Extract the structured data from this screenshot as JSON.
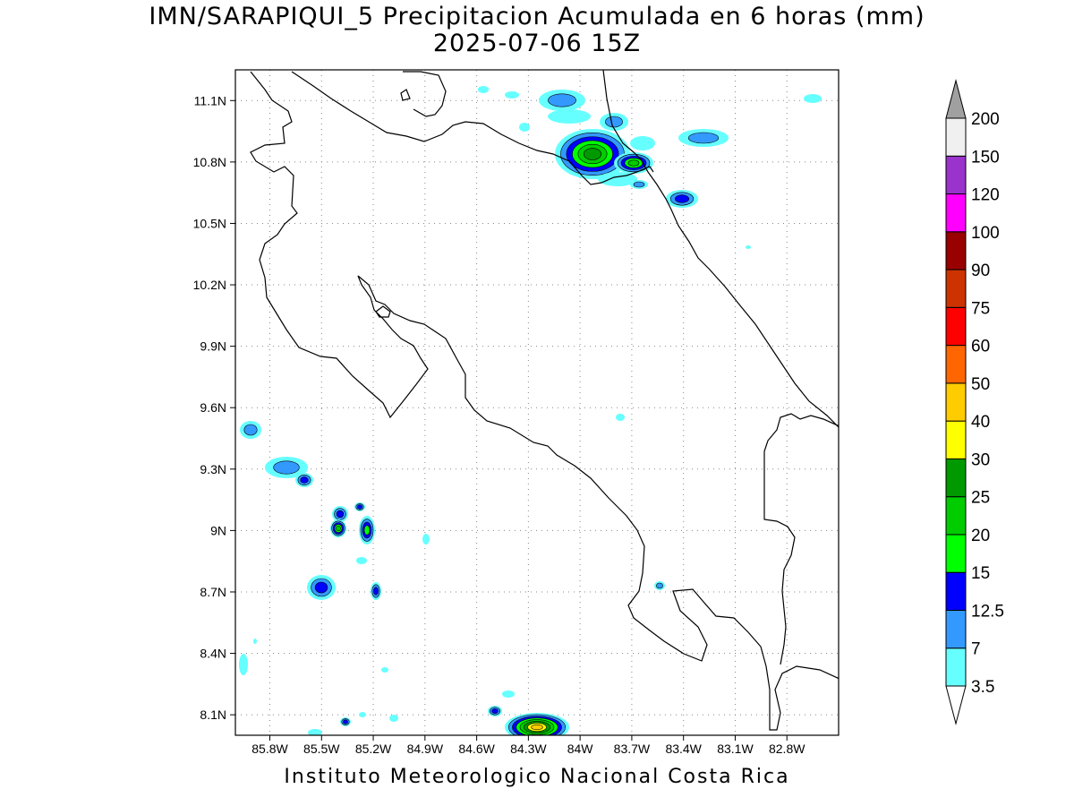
{
  "title": {
    "line1": "IMN/SARAPIQUI_5 Precipitacion Acumulada en 6 horas (mm)",
    "line2": "2025-07-06 15Z"
  },
  "footer": "Instituto Meteorologico Nacional Costa Rica",
  "map": {
    "lon_range": [
      -86.0,
      -82.5
    ],
    "lat_range": [
      8.0,
      11.25
    ],
    "lon_ticks": [
      {
        "value": -85.8,
        "label": "85.8W"
      },
      {
        "value": -85.5,
        "label": "85.5W"
      },
      {
        "value": -85.2,
        "label": "85.2W"
      },
      {
        "value": -84.9,
        "label": "84.9W"
      },
      {
        "value": -84.6,
        "label": "84.6W"
      },
      {
        "value": -84.3,
        "label": "84.3W"
      },
      {
        "value": -84.0,
        "label": "84W"
      },
      {
        "value": -83.7,
        "label": "83.7W"
      },
      {
        "value": -83.4,
        "label": "83.4W"
      },
      {
        "value": -83.1,
        "label": "83.1W"
      },
      {
        "value": -82.8,
        "label": "82.8W"
      }
    ],
    "lat_ticks": [
      {
        "value": 8.1,
        "label": "8.1N"
      },
      {
        "value": 8.4,
        "label": "8.4N"
      },
      {
        "value": 8.7,
        "label": "8.7N"
      },
      {
        "value": 9.0,
        "label": "9N"
      },
      {
        "value": 9.3,
        "label": "9.3N"
      },
      {
        "value": 9.6,
        "label": "9.6N"
      },
      {
        "value": 9.9,
        "label": "9.9N"
      },
      {
        "value": 10.2,
        "label": "10.2N"
      },
      {
        "value": 10.5,
        "label": "10.5N"
      },
      {
        "value": 10.8,
        "label": "10.8N"
      },
      {
        "value": 11.1,
        "label": "11.1N"
      }
    ],
    "grid": "dotted",
    "precip_cells": [
      {
        "lon": -84.05,
        "lat": 10.95,
        "max_mm": 25
      },
      {
        "lon": -83.9,
        "lat": 10.85,
        "max_mm": 20
      },
      {
        "lon": -84.05,
        "lat": 11.15,
        "max_mm": 7
      },
      {
        "lon": -83.4,
        "lat": 10.65,
        "max_mm": 12.5
      },
      {
        "lon": -84.2,
        "lat": 8.05,
        "max_mm": 40
      },
      {
        "lon": -85.45,
        "lat": 9.25,
        "max_mm": 12.5
      },
      {
        "lon": -85.1,
        "lat": 9.0,
        "max_mm": 20
      },
      {
        "lon": -85.45,
        "lat": 8.72,
        "max_mm": 12.5
      }
    ]
  },
  "colorbar": {
    "levels": [
      "3.5",
      "7",
      "12.5",
      "15",
      "20",
      "25",
      "30",
      "40",
      "50",
      "60",
      "75",
      "90",
      "100",
      "120",
      "150",
      "200"
    ],
    "colors": [
      "#66ffff",
      "#3399ff",
      "#0000ff",
      "#00ff00",
      "#00cc00",
      "#009900",
      "#ffff00",
      "#ffcc00",
      "#ff6600",
      "#ff0000",
      "#cc3300",
      "#990000",
      "#ff00ff",
      "#9933cc",
      "#f0f0f0",
      "#a0a0a0"
    ]
  }
}
